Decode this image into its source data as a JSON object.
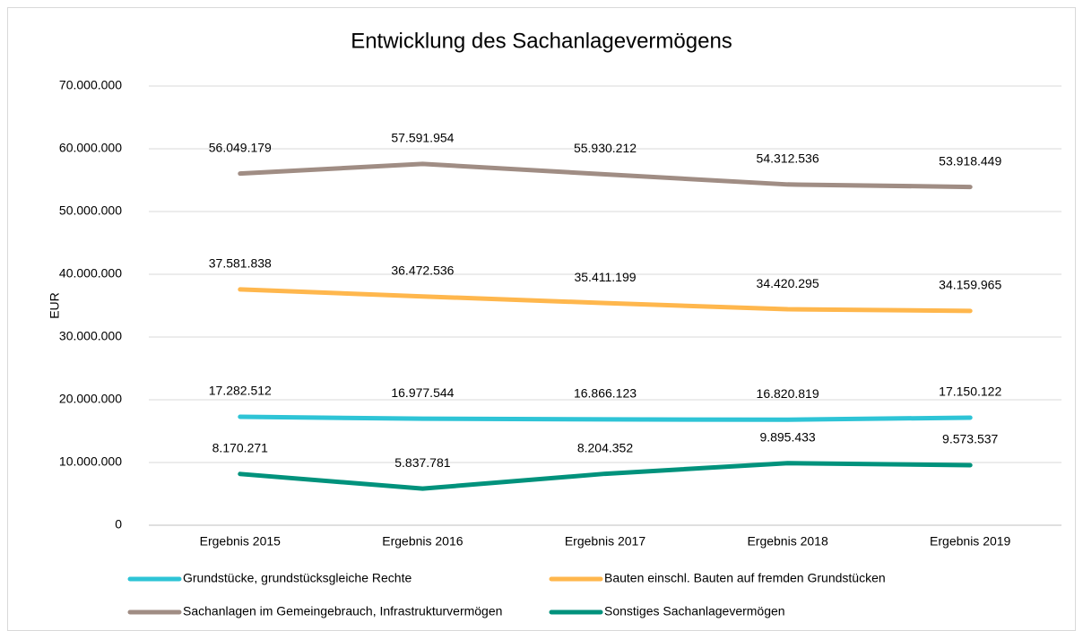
{
  "chart_data": {
    "type": "line",
    "title": "Entwicklung des Sachanlagevermögens",
    "y_label": "EUR",
    "categories": [
      "Ergebnis 2015",
      "Ergebnis 2016",
      "Ergebnis 2017",
      "Ergebnis 2018",
      "Ergebnis 2019"
    ],
    "series": [
      {
        "name": "Grundstücke, grundstücksgleiche Rechte",
        "color": "#2ec4d6",
        "values": [
          17282512,
          16977544,
          16866123,
          16820819,
          17150122
        ],
        "value_labels": [
          "17.282.512",
          "16.977.544",
          "16.866.123",
          "16.820.819",
          "17.150.122"
        ]
      },
      {
        "name": "Bauten einschl. Bauten auf fremden Grundstücken",
        "color": "#ffb74d",
        "values": [
          37581838,
          36472536,
          35411199,
          34420295,
          34159965
        ],
        "value_labels": [
          "37.581.838",
          "36.472.536",
          "35.411.199",
          "34.420.295",
          "34.159.965"
        ]
      },
      {
        "name": "Sachanlagen im Gemeingebrauch, Infrastrukturvermögen",
        "color": "#a08d84",
        "values": [
          56049179,
          57591954,
          55930212,
          54312536,
          53918449
        ],
        "value_labels": [
          "56.049.179",
          "57.591.954",
          "55.930.212",
          "54.312.536",
          "53.918.449"
        ]
      },
      {
        "name": "Sonstiges Sachanlagevermögen",
        "color": "#00927c",
        "values": [
          8170271,
          5837781,
          8204352,
          9895433,
          9573537
        ],
        "value_labels": [
          "8.170.271",
          "5.837.781",
          "8.204.352",
          "9.895.433",
          "9.573.537"
        ]
      }
    ],
    "ylim": [
      0,
      70000000
    ],
    "yticks": [
      0,
      {
        "value": 10000000,
        "label": "10.000.000"
      },
      {
        "value": 20000000,
        "label": "20.000.000"
      },
      {
        "value": 30000000,
        "label": "30.000.000"
      },
      {
        "value": 40000000,
        "label": "40.000.000"
      },
      {
        "value": 50000000,
        "label": "50.000.000"
      },
      {
        "value": 60000000,
        "label": "60.000.000"
      },
      {
        "value": 70000000,
        "label": "70.000.000"
      }
    ],
    "grid": true,
    "legend": "bottom"
  }
}
